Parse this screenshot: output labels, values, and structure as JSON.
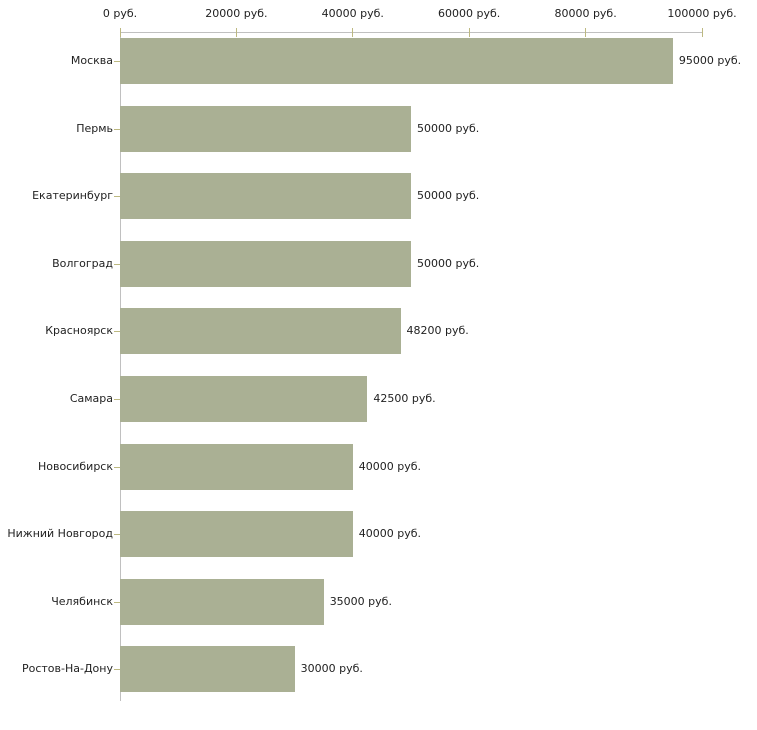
{
  "chart_data": {
    "type": "bar",
    "orientation": "horizontal",
    "title": "",
    "unit": "руб.",
    "categories": [
      "Москва",
      "Пермь",
      "Екатеринбург",
      "Волгоград",
      "Красноярск",
      "Самара",
      "Новосибирск",
      "Нижний Новгород",
      "Челябинск",
      "Ростов-На-Дону"
    ],
    "values": [
      95000,
      50000,
      50000,
      50000,
      48200,
      42500,
      40000,
      40000,
      35000,
      30000
    ],
    "value_labels": [
      "95000 руб.",
      "50000 руб.",
      "50000 руб.",
      "50000 руб.",
      "48200 руб.",
      "42500 руб.",
      "40000 руб.",
      "40000 руб.",
      "35000 руб.",
      "30000 руб."
    ],
    "x_axis": {
      "position": "top",
      "min": 0,
      "max": 100000,
      "ticks": [
        {
          "value": 0,
          "label": "0 руб."
        },
        {
          "value": 20000,
          "label": "20000 руб."
        },
        {
          "value": 40000,
          "label": "40000 руб."
        },
        {
          "value": 60000,
          "label": "60000 руб."
        },
        {
          "value": 80000,
          "label": "80000 руб."
        },
        {
          "value": 100000,
          "label": "100000 руб."
        }
      ]
    },
    "legend": false,
    "grid": false,
    "colors": {
      "bar": "#aab094",
      "axis_line": "#c0c0c0",
      "tick": "#bdb981",
      "text": "#222222",
      "background": "#ffffff"
    }
  }
}
